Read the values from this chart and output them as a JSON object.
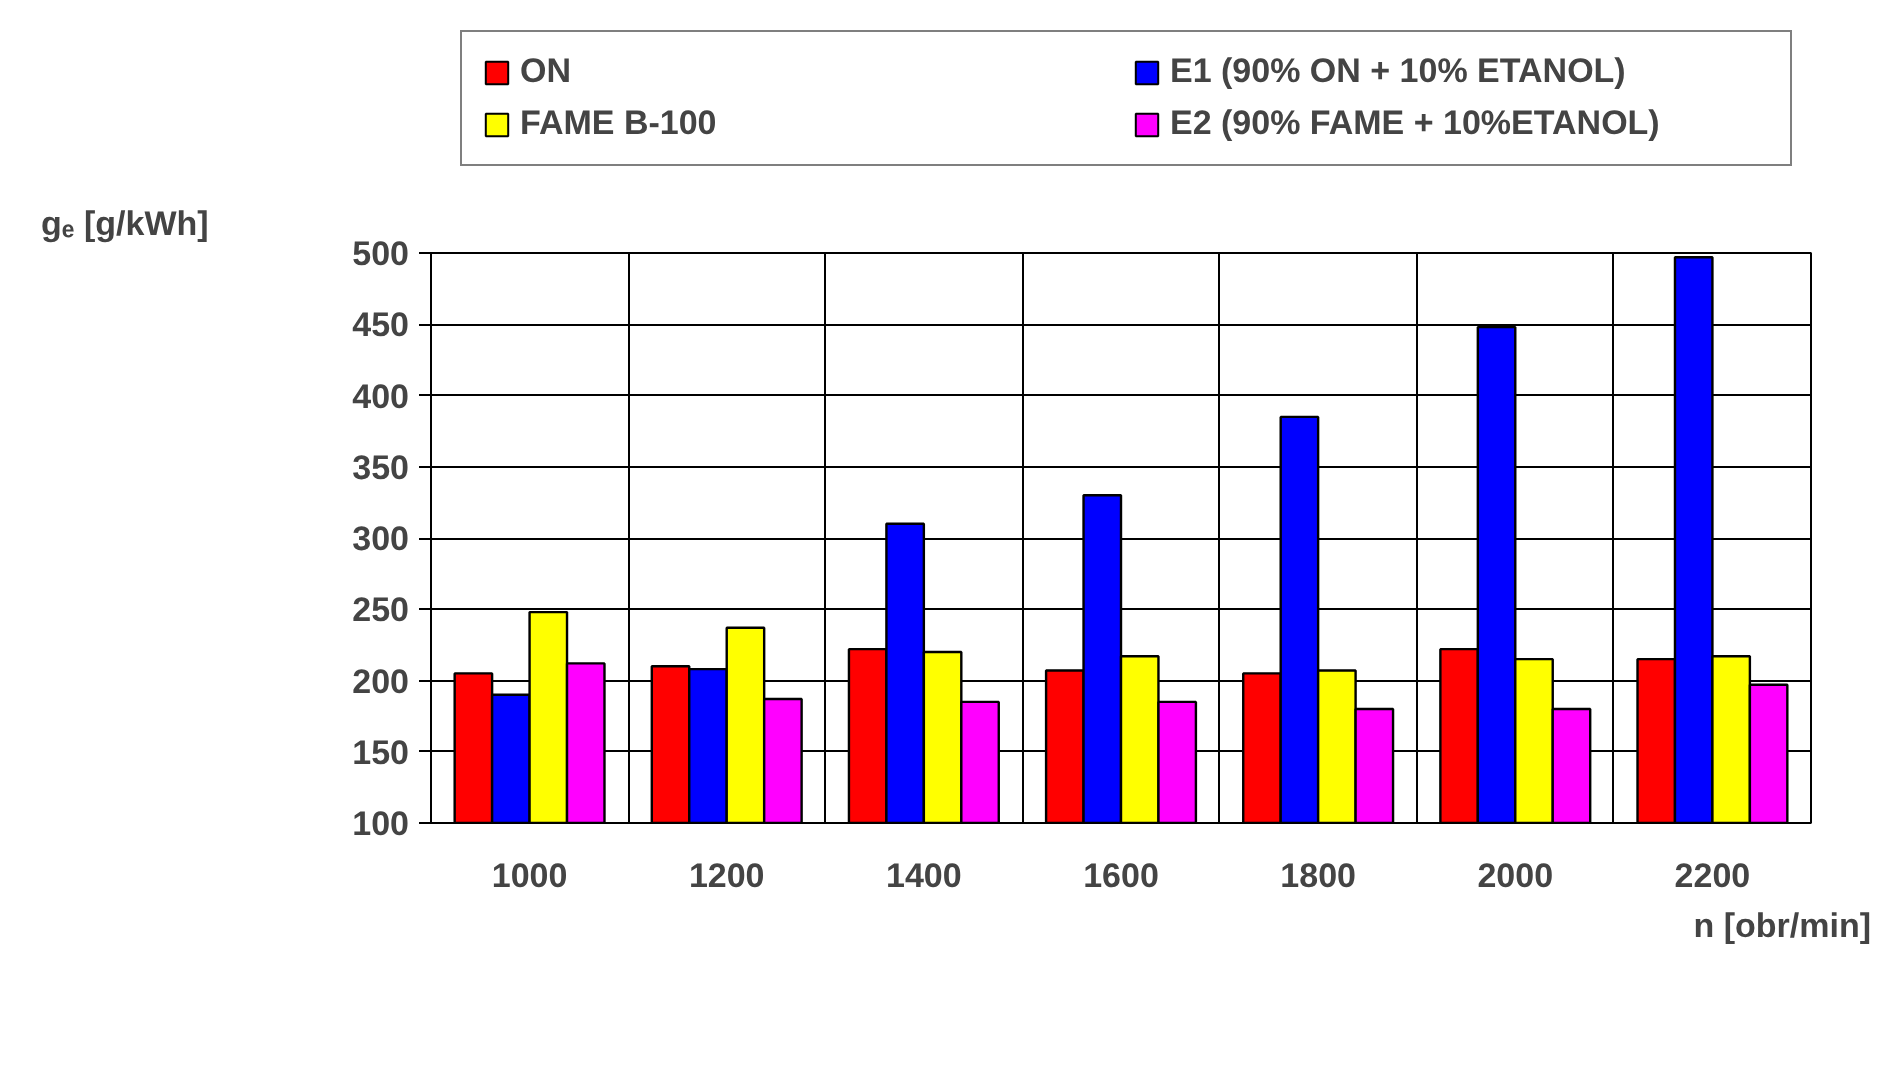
{
  "chart_data": {
    "type": "bar",
    "categories": [
      "1000",
      "1200",
      "1400",
      "1600",
      "1800",
      "2000",
      "2200"
    ],
    "series": [
      {
        "name": "ON",
        "color": "#ff0000",
        "values": [
          205,
          210,
          222,
          207,
          205,
          222,
          215
        ]
      },
      {
        "name": "E1 (90% ON + 10% ETANOL)",
        "color": "#0000ff",
        "values": [
          190,
          208,
          310,
          330,
          385,
          448,
          497
        ]
      },
      {
        "name": "FAME B-100",
        "color": "#ffff00",
        "values": [
          248,
          237,
          220,
          217,
          207,
          215,
          217
        ]
      },
      {
        "name": "E2 (90% FAME + 10%ETANOL)",
        "color": "#ff00ff",
        "values": [
          212,
          187,
          185,
          185,
          180,
          180,
          197
        ]
      }
    ],
    "ylabel": "gₑ [g/kWh]",
    "xlabel": "n [obr/min]",
    "ylim": [
      100,
      500
    ],
    "yticks": [
      100,
      150,
      200,
      250,
      300,
      350,
      400,
      450,
      500
    ],
    "grid": true,
    "legend": "top"
  }
}
